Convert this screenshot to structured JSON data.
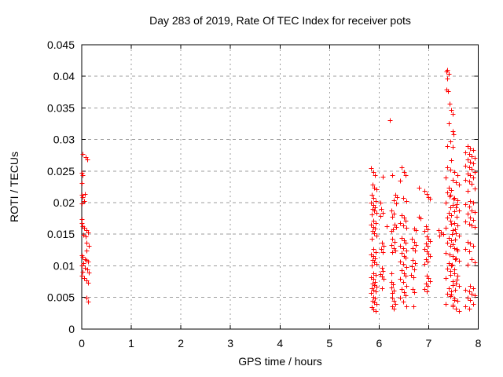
{
  "chart_data": {
    "type": "scatter",
    "title": "Day 283 of 2019, Rate Of TEC Index for receiver pots",
    "xlabel": "GPS time / hours",
    "ylabel": "ROTI / TECUs",
    "xlim": [
      0,
      8
    ],
    "ylim": [
      0,
      0.045
    ],
    "xticks": {
      "values": [
        0,
        1,
        2,
        3,
        4,
        5,
        6,
        7,
        8
      ],
      "labels": [
        "0",
        "1",
        "2",
        "3",
        "4",
        "5",
        "6",
        "7",
        "8"
      ]
    },
    "yticks": {
      "values": [
        0,
        0.005,
        0.01,
        0.015,
        0.02,
        0.025,
        0.03,
        0.035,
        0.04,
        0.045
      ],
      "labels": [
        "0",
        "0.005",
        "0.01",
        "0.015",
        "0.02",
        "0.025",
        "0.03",
        "0.035",
        "0.04",
        "0.045"
      ]
    },
    "grid": true,
    "legend": "none",
    "marker": {
      "shape": "plus",
      "color": "#ff0000",
      "size": 7
    },
    "points": [
      [
        0.02,
        0.0277
      ],
      [
        0.08,
        0.0272
      ],
      [
        0.11,
        0.0268
      ],
      [
        0.0,
        0.0247
      ],
      [
        0.02,
        0.0243
      ],
      [
        0.0,
        0.0231
      ],
      [
        0.07,
        0.0214
      ],
      [
        0.0,
        0.0212
      ],
      [
        0.02,
        0.0209
      ],
      [
        0.05,
        0.0203
      ],
      [
        0.0,
        0.0199
      ],
      [
        0.0,
        0.0174
      ],
      [
        0.0,
        0.0168
      ],
      [
        0.02,
        0.0163
      ],
      [
        0.05,
        0.016
      ],
      [
        0.1,
        0.0157
      ],
      [
        0.13,
        0.0153
      ],
      [
        0.03,
        0.0149
      ],
      [
        0.08,
        0.0147
      ],
      [
        0.1,
        0.0136
      ],
      [
        0.14,
        0.0131
      ],
      [
        0.09,
        0.0124
      ],
      [
        0.0,
        0.0117
      ],
      [
        0.02,
        0.0114
      ],
      [
        0.06,
        0.0111
      ],
      [
        0.09,
        0.0109
      ],
      [
        0.12,
        0.0107
      ],
      [
        0.03,
        0.0104
      ],
      [
        0.0,
        0.01
      ],
      [
        0.06,
        0.0097
      ],
      [
        0.11,
        0.0094
      ],
      [
        0.02,
        0.0091
      ],
      [
        0.14,
        0.0089
      ],
      [
        0.0,
        0.0084
      ],
      [
        0.05,
        0.008
      ],
      [
        0.09,
        0.0077
      ],
      [
        0.12,
        0.0073
      ],
      [
        0.09,
        0.0049
      ],
      [
        0.12,
        0.0043
      ],
      [
        5.84,
        0.0255
      ],
      [
        5.88,
        0.0248
      ],
      [
        5.92,
        0.0243
      ],
      [
        5.86,
        0.0228
      ],
      [
        5.9,
        0.0224
      ],
      [
        5.94,
        0.0221
      ],
      [
        5.85,
        0.0212
      ],
      [
        5.89,
        0.0208
      ],
      [
        5.93,
        0.0203
      ],
      [
        5.84,
        0.02
      ],
      [
        5.88,
        0.0196
      ],
      [
        5.92,
        0.0193
      ],
      [
        5.86,
        0.019
      ],
      [
        5.9,
        0.0187
      ],
      [
        5.94,
        0.0184
      ],
      [
        5.85,
        0.0181
      ],
      [
        5.89,
        0.0171
      ],
      [
        5.93,
        0.0168
      ],
      [
        5.84,
        0.0165
      ],
      [
        5.88,
        0.0162
      ],
      [
        5.92,
        0.0159
      ],
      [
        5.86,
        0.0155
      ],
      [
        5.9,
        0.0151
      ],
      [
        5.94,
        0.0148
      ],
      [
        5.85,
        0.0143
      ],
      [
        5.89,
        0.0126
      ],
      [
        5.93,
        0.0122
      ],
      [
        5.84,
        0.0118
      ],
      [
        5.88,
        0.0115
      ],
      [
        5.92,
        0.0112
      ],
      [
        5.86,
        0.0109
      ],
      [
        5.9,
        0.0106
      ],
      [
        5.94,
        0.0103
      ],
      [
        5.85,
        0.0101
      ],
      [
        5.89,
        0.0088
      ],
      [
        5.93,
        0.0085
      ],
      [
        5.84,
        0.0082
      ],
      [
        5.88,
        0.0079
      ],
      [
        5.92,
        0.0075
      ],
      [
        5.86,
        0.0072
      ],
      [
        5.9,
        0.007
      ],
      [
        5.94,
        0.0067
      ],
      [
        5.85,
        0.0064
      ],
      [
        5.89,
        0.0062
      ],
      [
        5.93,
        0.0059
      ],
      [
        5.84,
        0.0057
      ],
      [
        5.88,
        0.0051
      ],
      [
        5.92,
        0.0048
      ],
      [
        5.86,
        0.0045
      ],
      [
        5.9,
        0.0042
      ],
      [
        5.94,
        0.0039
      ],
      [
        5.85,
        0.0035
      ],
      [
        5.89,
        0.0031
      ],
      [
        5.93,
        0.0028
      ],
      [
        6.07,
        0.0241
      ],
      [
        6.02,
        0.02
      ],
      [
        6.04,
        0.019
      ],
      [
        6.08,
        0.0184
      ],
      [
        6.03,
        0.0179
      ],
      [
        6.15,
        0.0163
      ],
      [
        6.06,
        0.0137
      ],
      [
        6.09,
        0.0131
      ],
      [
        6.04,
        0.0126
      ],
      [
        6.07,
        0.0122
      ],
      [
        6.05,
        0.0097
      ],
      [
        6.08,
        0.0092
      ],
      [
        6.03,
        0.0087
      ],
      [
        6.06,
        0.0083
      ],
      [
        6.09,
        0.0079
      ],
      [
        6.06,
        0.0065
      ],
      [
        6.21,
        0.033
      ],
      [
        6.26,
        0.0243
      ],
      [
        6.33,
        0.0213
      ],
      [
        6.36,
        0.0209
      ],
      [
        6.3,
        0.0204
      ],
      [
        6.34,
        0.0199
      ],
      [
        6.25,
        0.0188
      ],
      [
        6.29,
        0.0183
      ],
      [
        6.27,
        0.0178
      ],
      [
        6.31,
        0.0165
      ],
      [
        6.35,
        0.0162
      ],
      [
        6.28,
        0.0158
      ],
      [
        6.24,
        0.0155
      ],
      [
        6.27,
        0.0143
      ],
      [
        6.31,
        0.0138
      ],
      [
        6.25,
        0.0133
      ],
      [
        6.29,
        0.0128
      ],
      [
        6.33,
        0.0124
      ],
      [
        6.27,
        0.0122
      ],
      [
        6.25,
        0.0088
      ],
      [
        6.24,
        0.0075
      ],
      [
        6.28,
        0.0071
      ],
      [
        6.25,
        0.0066
      ],
      [
        6.3,
        0.0061
      ],
      [
        6.27,
        0.0057
      ],
      [
        6.26,
        0.005
      ],
      [
        6.29,
        0.0045
      ],
      [
        6.32,
        0.004
      ],
      [
        6.27,
        0.0036
      ],
      [
        6.3,
        0.0032
      ],
      [
        6.46,
        0.0256
      ],
      [
        6.5,
        0.0249
      ],
      [
        6.53,
        0.0244
      ],
      [
        6.43,
        0.0235
      ],
      [
        6.48,
        0.0207
      ],
      [
        6.55,
        0.0203
      ],
      [
        6.46,
        0.018
      ],
      [
        6.5,
        0.0176
      ],
      [
        6.53,
        0.0172
      ],
      [
        6.43,
        0.0168
      ],
      [
        6.48,
        0.0164
      ],
      [
        6.55,
        0.016
      ],
      [
        6.46,
        0.0144
      ],
      [
        6.5,
        0.014
      ],
      [
        6.53,
        0.0136
      ],
      [
        6.43,
        0.0132
      ],
      [
        6.48,
        0.0128
      ],
      [
        6.55,
        0.0124
      ],
      [
        6.46,
        0.012
      ],
      [
        6.5,
        0.0116
      ],
      [
        6.53,
        0.0113
      ],
      [
        6.43,
        0.0107
      ],
      [
        6.48,
        0.0103
      ],
      [
        6.55,
        0.0098
      ],
      [
        6.46,
        0.0093
      ],
      [
        6.5,
        0.0088
      ],
      [
        6.53,
        0.0084
      ],
      [
        6.43,
        0.0079
      ],
      [
        6.48,
        0.0074
      ],
      [
        6.55,
        0.0068
      ],
      [
        6.46,
        0.0063
      ],
      [
        6.5,
        0.0058
      ],
      [
        6.53,
        0.0053
      ],
      [
        6.43,
        0.0049
      ],
      [
        6.48,
        0.0043
      ],
      [
        6.55,
        0.0036
      ],
      [
        6.8,
        0.0224
      ],
      [
        6.8,
        0.0178
      ],
      [
        6.84,
        0.0175
      ],
      [
        6.7,
        0.0159
      ],
      [
        6.74,
        0.0156
      ],
      [
        6.66,
        0.0143
      ],
      [
        6.7,
        0.0138
      ],
      [
        6.74,
        0.0133
      ],
      [
        6.68,
        0.0128
      ],
      [
        6.72,
        0.0124
      ],
      [
        6.68,
        0.0109
      ],
      [
        6.72,
        0.0104
      ],
      [
        6.66,
        0.0099
      ],
      [
        6.7,
        0.0094
      ],
      [
        6.65,
        0.0086
      ],
      [
        6.69,
        0.0082
      ],
      [
        6.68,
        0.0063
      ],
      [
        6.7,
        0.0058
      ],
      [
        6.69,
        0.0036
      ],
      [
        6.92,
        0.0219
      ],
      [
        6.96,
        0.0214
      ],
      [
        7.0,
        0.0209
      ],
      [
        7.03,
        0.0206
      ],
      [
        6.94,
        0.0163
      ],
      [
        6.98,
        0.0158
      ],
      [
        6.92,
        0.0155
      ],
      [
        6.96,
        0.0147
      ],
      [
        7.0,
        0.0143
      ],
      [
        7.03,
        0.0139
      ],
      [
        6.94,
        0.0135
      ],
      [
        6.98,
        0.0131
      ],
      [
        6.92,
        0.0127
      ],
      [
        6.96,
        0.0123
      ],
      [
        7.0,
        0.0119
      ],
      [
        7.03,
        0.0115
      ],
      [
        6.94,
        0.0111
      ],
      [
        6.98,
        0.0107
      ],
      [
        6.92,
        0.0103
      ],
      [
        6.96,
        0.0084
      ],
      [
        7.0,
        0.008
      ],
      [
        7.03,
        0.0076
      ],
      [
        6.94,
        0.0072
      ],
      [
        6.98,
        0.0068
      ],
      [
        6.92,
        0.0063
      ],
      [
        6.96,
        0.0059
      ],
      [
        7.2,
        0.0157
      ],
      [
        7.25,
        0.0153
      ],
      [
        7.29,
        0.015
      ],
      [
        7.22,
        0.0148
      ],
      [
        7.38,
        0.041
      ],
      [
        7.36,
        0.0408
      ],
      [
        7.4,
        0.0404
      ],
      [
        7.38,
        0.0397
      ],
      [
        7.36,
        0.0379
      ],
      [
        7.39,
        0.0377
      ],
      [
        7.42,
        0.0357
      ],
      [
        7.45,
        0.0347
      ],
      [
        7.48,
        0.0341
      ],
      [
        7.41,
        0.0325
      ],
      [
        7.48,
        0.0313
      ],
      [
        7.5,
        0.0308
      ],
      [
        7.44,
        0.0297
      ],
      [
        7.37,
        0.029
      ],
      [
        7.48,
        0.0288
      ],
      [
        7.45,
        0.0267
      ],
      [
        7.37,
        0.0256
      ],
      [
        7.44,
        0.0252
      ],
      [
        7.52,
        0.0248
      ],
      [
        7.58,
        0.0244
      ],
      [
        7.34,
        0.024
      ],
      [
        7.48,
        0.0236
      ],
      [
        7.55,
        0.0232
      ],
      [
        7.61,
        0.0228
      ],
      [
        7.4,
        0.0224
      ],
      [
        7.46,
        0.022
      ],
      [
        7.37,
        0.0216
      ],
      [
        7.44,
        0.0212
      ],
      [
        7.52,
        0.0208
      ],
      [
        7.58,
        0.0204
      ],
      [
        7.34,
        0.02
      ],
      [
        7.48,
        0.0196
      ],
      [
        7.55,
        0.0192
      ],
      [
        7.61,
        0.0188
      ],
      [
        7.4,
        0.0184
      ],
      [
        7.46,
        0.018
      ],
      [
        7.37,
        0.0176
      ],
      [
        7.44,
        0.0172
      ],
      [
        7.52,
        0.0168
      ],
      [
        7.58,
        0.0164
      ],
      [
        7.34,
        0.016
      ],
      [
        7.48,
        0.0156
      ],
      [
        7.55,
        0.0152
      ],
      [
        7.61,
        0.0148
      ],
      [
        7.4,
        0.0144
      ],
      [
        7.46,
        0.014
      ],
      [
        7.37,
        0.0136
      ],
      [
        7.44,
        0.0132
      ],
      [
        7.52,
        0.0128
      ],
      [
        7.58,
        0.0124
      ],
      [
        7.34,
        0.012
      ],
      [
        7.48,
        0.0116
      ],
      [
        7.55,
        0.0112
      ],
      [
        7.61,
        0.0108
      ],
      [
        7.4,
        0.0104
      ],
      [
        7.46,
        0.01
      ],
      [
        7.37,
        0.0096
      ],
      [
        7.44,
        0.0092
      ],
      [
        7.52,
        0.0088
      ],
      [
        7.58,
        0.0084
      ],
      [
        7.34,
        0.008
      ],
      [
        7.48,
        0.0076
      ],
      [
        7.55,
        0.0072
      ],
      [
        7.61,
        0.0068
      ],
      [
        7.4,
        0.0064
      ],
      [
        7.46,
        0.006
      ],
      [
        7.37,
        0.0056
      ],
      [
        7.44,
        0.0052
      ],
      [
        7.52,
        0.0048
      ],
      [
        7.58,
        0.0044
      ],
      [
        7.34,
        0.004
      ],
      [
        7.48,
        0.0036
      ],
      [
        7.55,
        0.0032
      ],
      [
        7.61,
        0.0028
      ],
      [
        7.42,
        0.021
      ],
      [
        7.5,
        0.0206
      ],
      [
        7.56,
        0.0198
      ],
      [
        7.43,
        0.0192
      ],
      [
        7.51,
        0.0186
      ],
      [
        7.57,
        0.0178
      ],
      [
        7.45,
        0.0166
      ],
      [
        7.53,
        0.0158
      ],
      [
        7.47,
        0.015
      ],
      [
        7.54,
        0.0142
      ],
      [
        7.49,
        0.0134
      ],
      [
        7.56,
        0.0126
      ],
      [
        7.42,
        0.0118
      ],
      [
        7.53,
        0.011
      ],
      [
        7.47,
        0.0102
      ],
      [
        7.51,
        0.0094
      ],
      [
        7.44,
        0.0086
      ],
      [
        7.56,
        0.0078
      ],
      [
        7.49,
        0.007
      ],
      [
        7.53,
        0.0062
      ],
      [
        7.46,
        0.0054
      ],
      [
        7.52,
        0.0046
      ],
      [
        7.48,
        0.0038
      ],
      [
        7.78,
        0.029
      ],
      [
        7.84,
        0.0286
      ],
      [
        7.9,
        0.0283
      ],
      [
        7.74,
        0.028
      ],
      [
        7.81,
        0.0277
      ],
      [
        7.87,
        0.0274
      ],
      [
        7.93,
        0.0271
      ],
      [
        7.78,
        0.0268
      ],
      [
        7.84,
        0.0265
      ],
      [
        7.9,
        0.0262
      ],
      [
        7.74,
        0.0259
      ],
      [
        7.81,
        0.0256
      ],
      [
        7.87,
        0.0253
      ],
      [
        7.93,
        0.0249
      ],
      [
        7.78,
        0.0246
      ],
      [
        7.84,
        0.0243
      ],
      [
        7.9,
        0.024
      ],
      [
        7.74,
        0.0236
      ],
      [
        7.81,
        0.0233
      ],
      [
        7.87,
        0.023
      ],
      [
        7.93,
        0.0222
      ],
      [
        7.78,
        0.0219
      ],
      [
        7.84,
        0.0203
      ],
      [
        7.9,
        0.02
      ],
      [
        7.74,
        0.0197
      ],
      [
        7.81,
        0.0194
      ],
      [
        7.87,
        0.0188
      ],
      [
        7.93,
        0.0185
      ],
      [
        7.78,
        0.0182
      ],
      [
        7.84,
        0.0176
      ],
      [
        7.9,
        0.0173
      ],
      [
        7.74,
        0.017
      ],
      [
        7.81,
        0.0167
      ],
      [
        7.87,
        0.0164
      ],
      [
        7.93,
        0.0161
      ],
      [
        7.78,
        0.0138
      ],
      [
        7.84,
        0.0135
      ],
      [
        7.9,
        0.0131
      ],
      [
        7.74,
        0.0127
      ],
      [
        7.81,
        0.0123
      ],
      [
        7.87,
        0.011
      ],
      [
        7.93,
        0.0106
      ],
      [
        7.78,
        0.0102
      ],
      [
        7.84,
        0.0068
      ],
      [
        7.9,
        0.0065
      ],
      [
        7.74,
        0.0062
      ],
      [
        7.81,
        0.0059
      ],
      [
        7.87,
        0.0056
      ],
      [
        7.93,
        0.0053
      ],
      [
        7.78,
        0.005
      ],
      [
        7.84,
        0.0046
      ],
      [
        7.9,
        0.004
      ],
      [
        7.74,
        0.0036
      ],
      [
        7.81,
        0.0032
      ]
    ],
    "colors": {
      "marker": "#ff0000",
      "grid": "#9c9c9c",
      "axis": "#000000",
      "background": "#ffffff"
    }
  }
}
